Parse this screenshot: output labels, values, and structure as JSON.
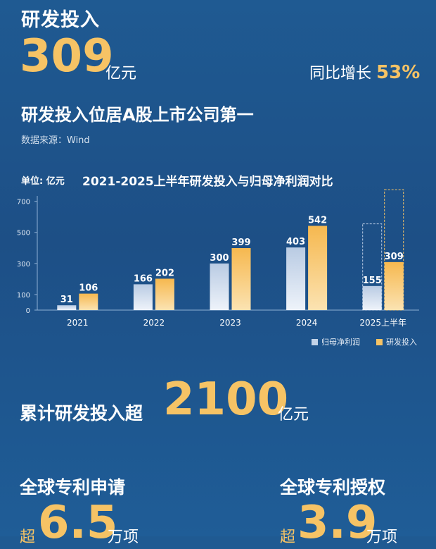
{
  "header": {
    "title": "研发投入",
    "amount": "309",
    "amount_unit": "亿元",
    "yoy_label": "同比增长",
    "yoy_value": "53%",
    "rank": "研发投入位居A股上市公司第一",
    "source": "数据来源：Wind"
  },
  "chart_data": {
    "type": "bar",
    "title": "2021-2025上半年研发投入与归母净利润对比",
    "unit": "单位: 亿元",
    "categories": [
      "2021",
      "2022",
      "2023",
      "2024",
      "2025上半年"
    ],
    "series": [
      {
        "name": "归母净利润",
        "values": [
          31,
          166,
          300,
          403,
          155
        ],
        "color": "#c3d3e8"
      },
      {
        "name": "研发投入",
        "values": [
          106,
          202,
          399,
          542,
          309
        ],
        "color": "#f6c365"
      }
    ],
    "dashed_placeholder_values": {
      "归母净利润": 555,
      "研发投入": 775
    },
    "yticks": [
      0,
      100,
      300,
      500,
      700
    ],
    "ylim": [
      0,
      780
    ],
    "legend_position": "bottom-right"
  },
  "cumulative": {
    "label": "累计研发投入超",
    "value": "2100",
    "unit": "亿元"
  },
  "patents": {
    "apply_label": "全球专利申请",
    "apply_prefix": "超",
    "apply_value": "6.5",
    "apply_unit": "万项",
    "grant_label": "全球专利授权",
    "grant_prefix": "超",
    "grant_value": "3.9",
    "grant_unit": "万项"
  }
}
